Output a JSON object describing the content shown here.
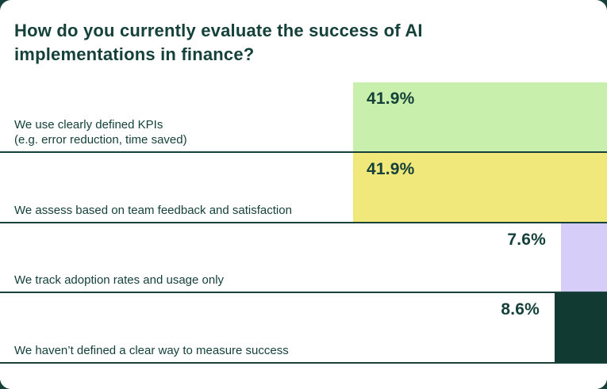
{
  "card": {
    "background_color": "#ffffff",
    "page_background_color": "#15413a",
    "text_color": "#15413a"
  },
  "chart_data": {
    "type": "bar",
    "orientation": "horizontal",
    "title": "How do you currently evaluate the success of AI implementations in finance?",
    "categories": [
      "We use clearly defined KPIs\n(e.g. error reduction, time saved)",
      "We assess based on team feedback and satisfaction",
      "We track adoption rates and usage only",
      "We haven’t defined a clear way to measure success"
    ],
    "values": [
      41.9,
      41.9,
      7.6,
      8.6
    ],
    "value_labels": [
      "41.9%",
      "41.9%",
      "7.6%",
      "8.6%"
    ],
    "bar_colors": [
      "#c8efac",
      "#f0e87b",
      "#d6cdf8",
      "#113a32"
    ],
    "xlim": [
      0,
      41.9
    ],
    "legend": "none",
    "grid": false,
    "separator_color": "#15413a"
  }
}
